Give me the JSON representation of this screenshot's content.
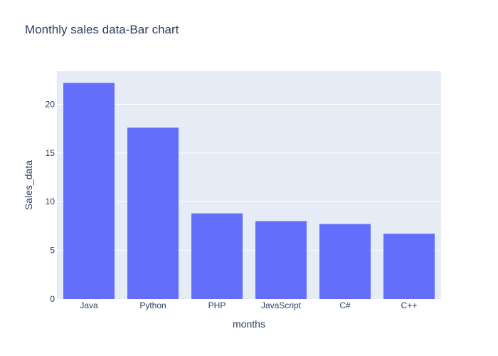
{
  "chart_data": {
    "type": "bar",
    "title": "Monthly sales data-Bar chart",
    "xlabel": "months",
    "ylabel": "Sales_data",
    "categories": [
      "Java",
      "Python",
      "PHP",
      "JavaScript",
      "C#",
      "C++"
    ],
    "values": [
      22.2,
      17.6,
      8.8,
      8.0,
      7.7,
      6.7
    ],
    "ylim": [
      0,
      23.4
    ],
    "yticks": [
      0,
      5,
      10,
      15,
      20
    ],
    "grid": true,
    "colors": {
      "bar": "#636efa",
      "plot_background": "#e5ecf6",
      "grid": "#ffffff",
      "text": "#2a3f5f"
    }
  }
}
